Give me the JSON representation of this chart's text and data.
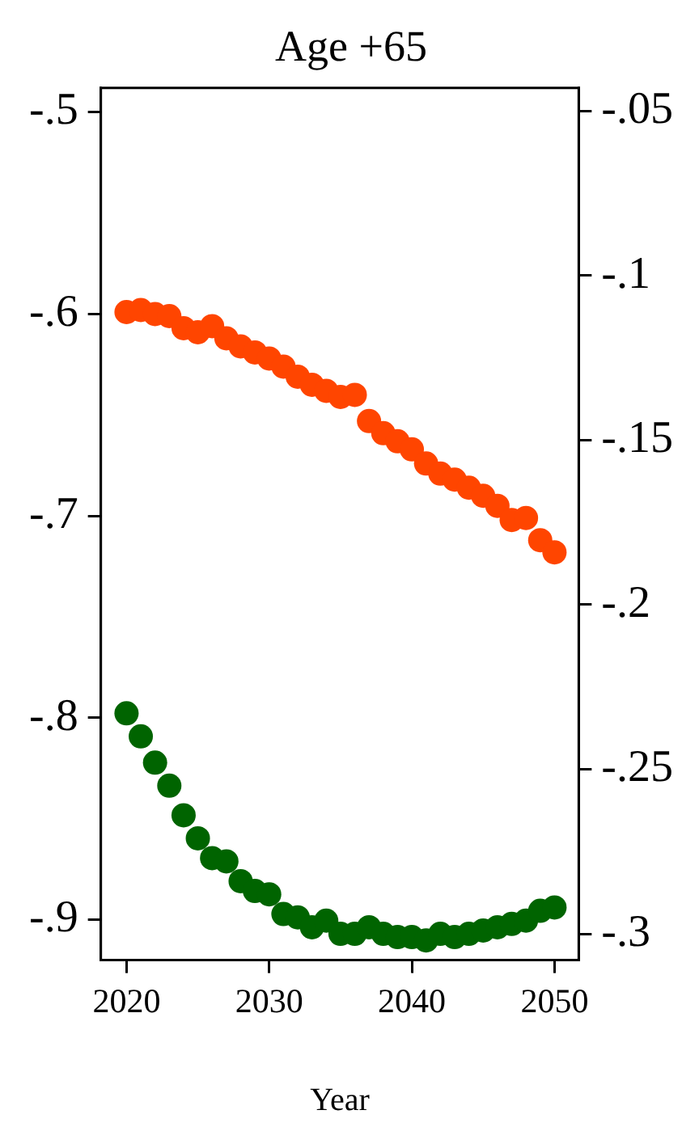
{
  "chart_data": {
    "type": "scatter",
    "title": "Age +65",
    "xlabel": "Year",
    "x": [
      2020,
      2021,
      2022,
      2023,
      2024,
      2025,
      2026,
      2027,
      2028,
      2029,
      2030,
      2031,
      2032,
      2033,
      2034,
      2035,
      2036,
      2037,
      2038,
      2039,
      2040,
      2041,
      2042,
      2043,
      2044,
      2045,
      2046,
      2047,
      2048,
      2049,
      2050
    ],
    "series": [
      {
        "color": "#ff4500",
        "axis": "y",
        "values": [
          -0.599,
          -0.598,
          -0.6,
          -0.601,
          -0.607,
          -0.609,
          -0.606,
          -0.612,
          -0.616,
          -0.619,
          -0.622,
          -0.626,
          -0.631,
          -0.635,
          -0.638,
          -0.641,
          -0.64,
          -0.653,
          -0.659,
          -0.663,
          -0.667,
          -0.674,
          -0.679,
          -0.682,
          -0.686,
          -0.69,
          -0.695,
          -0.702,
          -0.701,
          -0.712,
          -0.718
        ]
      },
      {
        "color": "#006400",
        "axis": "y2",
        "values": [
          -0.233,
          -0.24,
          -0.248,
          -0.255,
          -0.264,
          -0.271,
          -0.277,
          -0.278,
          -0.284,
          -0.287,
          -0.288,
          -0.294,
          -0.295,
          -0.298,
          -0.296,
          -0.3,
          -0.3,
          -0.298,
          -0.3,
          -0.301,
          -0.301,
          -0.302,
          -0.3,
          -0.301,
          -0.3,
          -0.299,
          -0.298,
          -0.297,
          -0.296,
          -0.293,
          -0.292
        ]
      }
    ],
    "xlim": [
      2018.2,
      2051.7
    ],
    "xticks": [
      2020,
      2030,
      2040,
      2050
    ],
    "ylim": [
      -0.92,
      -0.488
    ],
    "yticks": [
      {
        "value": -0.9,
        "label": "-.9"
      },
      {
        "value": -0.8,
        "label": "-.8"
      },
      {
        "value": -0.7,
        "label": "-.7"
      },
      {
        "value": -0.6,
        "label": "-.6"
      },
      {
        "value": -0.5,
        "label": "-.5"
      }
    ],
    "y2lim": [
      -0.308,
      -0.043
    ],
    "y2ticks": [
      {
        "value": -0.3,
        "label": "-.3"
      },
      {
        "value": -0.25,
        "label": "-.25"
      },
      {
        "value": -0.2,
        "label": "-.2"
      },
      {
        "value": -0.15,
        "label": "-.15"
      },
      {
        "value": -0.1,
        "label": "-.1"
      },
      {
        "value": -0.05,
        "label": "-.05"
      }
    ],
    "grid": false,
    "marker": "circle"
  }
}
